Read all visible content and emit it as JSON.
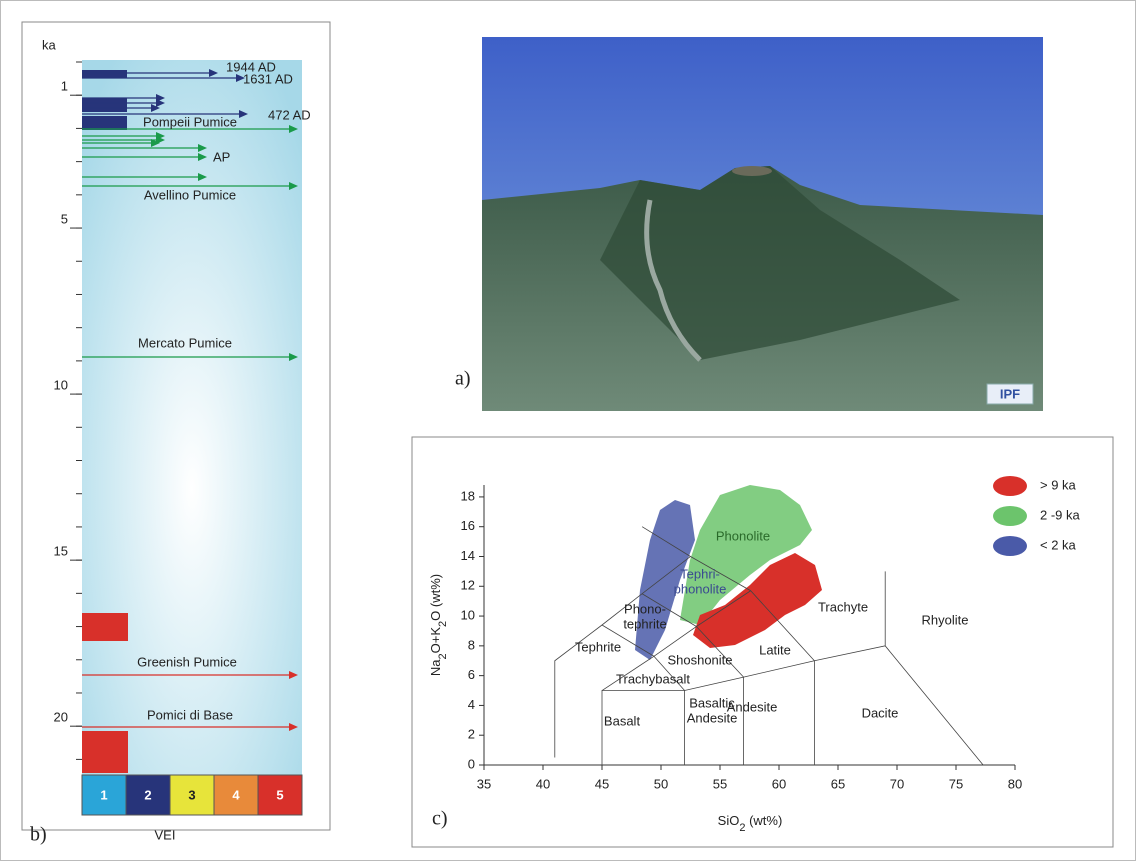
{
  "panel_b": {
    "label": "b)",
    "axis_title": "ka",
    "ylim": [
      0,
      21.5
    ],
    "ticks": [
      1,
      5,
      10,
      15,
      20
    ],
    "events": [
      "1944 AD",
      "1631 AD",
      "472 AD",
      "Pompeii Pumice",
      "AP",
      "Avellino Pumice",
      "Mercato Pumice",
      "Greenish Pumice",
      "Pomici di Base"
    ],
    "vei_classes": [
      "1",
      "2",
      "3",
      "4",
      "5"
    ],
    "vei_title": "VEI"
  },
  "panel_a": {
    "label": "a)",
    "logo": "IPF"
  },
  "panel_c": {
    "label": "c)",
    "x_title": [
      "SiO",
      "2",
      " (wt%)"
    ],
    "y_title": [
      "Na",
      "2",
      "O+K",
      "2",
      "O (wt%)"
    ],
    "xlim": [
      35,
      80
    ],
    "xticks": [
      35,
      40,
      45,
      50,
      55,
      60,
      65,
      70,
      75,
      80
    ],
    "ylim": [
      0,
      18.8
    ],
    "yticks": [
      0,
      2,
      4,
      6,
      8,
      10,
      12,
      14,
      16,
      18
    ],
    "fields": [
      [
        "Phonolite"
      ],
      [
        "Tephri-",
        "phonolite"
      ],
      [
        "Phono-",
        "tephrite"
      ],
      [
        "Tephrite"
      ],
      [
        "Shoshonite"
      ],
      [
        "Latite"
      ],
      [
        "Trachyte"
      ],
      [
        "Rhyolite"
      ],
      [
        "Trachybasalt"
      ],
      [
        "Basalt"
      ],
      [
        "Basaltic",
        "Andesite"
      ],
      [
        "Andesite"
      ],
      [
        "Dacite"
      ]
    ],
    "legend": [
      {
        "name": "> 9 ka",
        "color": "#d8302a"
      },
      {
        "name": "2 -9  ka",
        "color": "#6cc46c"
      },
      {
        "name": "< 2 ka",
        "color": "#4a5aa8"
      }
    ]
  }
}
